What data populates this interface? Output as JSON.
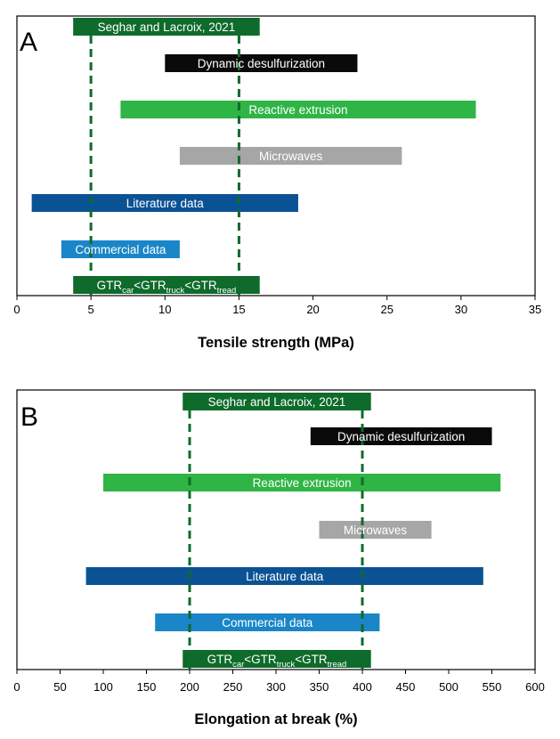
{
  "chart_data": [
    {
      "type": "range-bar",
      "panel_label": "A",
      "xlabel": "Tensile strength (MPa)",
      "xlim": [
        0,
        35
      ],
      "xticks": [
        0,
        5,
        10,
        15,
        20,
        25,
        30,
        35
      ],
      "reference_lines": [
        5,
        15
      ],
      "series": [
        {
          "name": "Seghar and Lacroix, 2021",
          "range": [
            3.8,
            16.4
          ],
          "color": "#0e6b2b",
          "text_color": "#ffffff"
        },
        {
          "name": "Dynamic desulfurization",
          "range": [
            10,
            23
          ],
          "color": "#0a0a0a",
          "text_color": "#ffffff"
        },
        {
          "name": "Reactive extrusion",
          "range": [
            7,
            31
          ],
          "color": "#2fb545",
          "text_color": "#ffffff"
        },
        {
          "name": "Microwaves",
          "range": [
            11,
            26
          ],
          "color": "#a6a6a6",
          "text_color": "#ffffff"
        },
        {
          "name": "Literature data",
          "range": [
            1,
            19
          ],
          "color": "#0b5294",
          "text_color": "#ffffff"
        },
        {
          "name": "Commercial data",
          "range": [
            3,
            11
          ],
          "color": "#1a86c8",
          "text_color": "#ffffff"
        },
        {
          "name": "GTR_car<GTR_truck<GTR_tread",
          "range": [
            3.8,
            16.4
          ],
          "color": "#0e6b2b",
          "text_color": "#ffffff",
          "label_parts": [
            {
              "text": "GTR",
              "sub": false
            },
            {
              "text": "car",
              "sub": true
            },
            {
              "text": "<GTR",
              "sub": false
            },
            {
              "text": "truck",
              "sub": true
            },
            {
              "text": "<GTR",
              "sub": false
            },
            {
              "text": "tread",
              "sub": true
            }
          ]
        }
      ]
    },
    {
      "type": "range-bar",
      "panel_label": "B",
      "xlabel": "Elongation at break (%)",
      "xlim": [
        0,
        600
      ],
      "xticks": [
        0,
        50,
        100,
        150,
        200,
        250,
        300,
        350,
        400,
        450,
        500,
        550,
        600
      ],
      "reference_lines": [
        200,
        400
      ],
      "series": [
        {
          "name": "Seghar and Lacroix, 2021",
          "range": [
            192,
            410
          ],
          "color": "#0e6b2b",
          "text_color": "#ffffff"
        },
        {
          "name": "Dynamic desulfurization",
          "range": [
            340,
            550
          ],
          "color": "#0a0a0a",
          "text_color": "#ffffff"
        },
        {
          "name": "Reactive extrusion",
          "range": [
            100,
            560
          ],
          "color": "#2fb545",
          "text_color": "#ffffff"
        },
        {
          "name": "Microwaves",
          "range": [
            350,
            480
          ],
          "color": "#a6a6a6",
          "text_color": "#ffffff"
        },
        {
          "name": "Literature data",
          "range": [
            80,
            540
          ],
          "color": "#0b5294",
          "text_color": "#ffffff"
        },
        {
          "name": "Commercial data",
          "range": [
            160,
            420
          ],
          "color": "#1a86c8",
          "text_color": "#ffffff"
        },
        {
          "name": "GTR_car<GTR_truck<GTR_tread",
          "range": [
            192,
            410
          ],
          "color": "#0e6b2b",
          "text_color": "#ffffff",
          "label_parts": [
            {
              "text": "GTR",
              "sub": false
            },
            {
              "text": "car",
              "sub": true
            },
            {
              "text": "<GTR",
              "sub": false
            },
            {
              "text": "truck",
              "sub": true
            },
            {
              "text": "<GTR",
              "sub": false
            },
            {
              "text": "tread",
              "sub": true
            }
          ]
        }
      ]
    }
  ],
  "colors": {
    "reference_line": "#0e6b2b",
    "frame": "#000000"
  }
}
